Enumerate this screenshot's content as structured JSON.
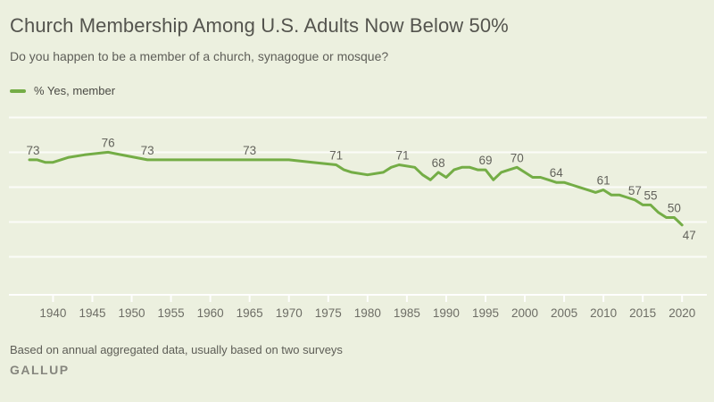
{
  "header": {
    "title": "Church Membership Among U.S. Adults Now Below 50%",
    "subtitle": "Do you happen to be a member of a church, synagogue or mosque?"
  },
  "legend": {
    "label": "% Yes, member",
    "swatch_color": "#74ad46"
  },
  "footer": {
    "note": "Based on annual aggregated data, usually based on two surveys",
    "brand": "GALLUP"
  },
  "colors": {
    "background": "#ecf0df",
    "line": "#74ad46",
    "grid": "#ffffff",
    "title_text": "#54544e",
    "label_text": "#63635c",
    "axis_text": "#6d6d65",
    "brand_text": "#86867e"
  },
  "chart_data": {
    "type": "line",
    "title": "Church Membership Among U.S. Adults Now Below 50%",
    "question": "Do you happen to be a member of a church, synagogue or mosque?",
    "xlabel": "",
    "ylabel": "% Yes, member",
    "x_range": [
      1937,
      2021
    ],
    "ylim": [
      19,
      90
    ],
    "grid": true,
    "y_axis_labels": "none (gridlines unlabeled)",
    "legend_position": "top-left",
    "x_ticks": [
      "1940",
      "1945",
      "1950",
      "1955",
      "1960",
      "1965",
      "1970",
      "1975",
      "1980",
      "1985",
      "1990",
      "1995",
      "2000",
      "2005",
      "2010",
      "2015",
      "2020"
    ],
    "x_tick_years": [
      1940,
      1945,
      1950,
      1955,
      1960,
      1965,
      1970,
      1975,
      1980,
      1985,
      1990,
      1995,
      2000,
      2005,
      2010,
      2015,
      2020
    ],
    "series": [
      {
        "name": "% Yes, member",
        "color": "#74ad46",
        "points": [
          [
            1937,
            73
          ],
          [
            1938,
            73
          ],
          [
            1939,
            72
          ],
          [
            1940,
            72
          ],
          [
            1942,
            74
          ],
          [
            1944,
            75
          ],
          [
            1947,
            76
          ],
          [
            1952,
            73
          ],
          [
            1955,
            73
          ],
          [
            1960,
            73
          ],
          [
            1965,
            73
          ],
          [
            1970,
            73
          ],
          [
            1973,
            72
          ],
          [
            1976,
            71
          ],
          [
            1977,
            69
          ],
          [
            1978,
            68
          ],
          [
            1980,
            67
          ],
          [
            1982,
            68
          ],
          [
            1983,
            70
          ],
          [
            1984,
            71
          ],
          [
            1986,
            70
          ],
          [
            1987,
            67
          ],
          [
            1988,
            65
          ],
          [
            1989,
            68
          ],
          [
            1990,
            66
          ],
          [
            1991,
            69
          ],
          [
            1992,
            70
          ],
          [
            1993,
            70
          ],
          [
            1994,
            69
          ],
          [
            1995,
            69
          ],
          [
            1996,
            65
          ],
          [
            1997,
            68
          ],
          [
            1998,
            69
          ],
          [
            1999,
            70
          ],
          [
            2000,
            68
          ],
          [
            2001,
            66
          ],
          [
            2002,
            66
          ],
          [
            2003,
            65
          ],
          [
            2004,
            64
          ],
          [
            2005,
            64
          ],
          [
            2006,
            63
          ],
          [
            2007,
            62
          ],
          [
            2008,
            61
          ],
          [
            2009,
            60
          ],
          [
            2010,
            61
          ],
          [
            2011,
            59
          ],
          [
            2012,
            59
          ],
          [
            2013,
            58
          ],
          [
            2014,
            57
          ],
          [
            2015,
            55
          ],
          [
            2016,
            55
          ],
          [
            2017,
            52
          ],
          [
            2018,
            50
          ],
          [
            2019,
            50
          ],
          [
            2020,
            47
          ]
        ]
      }
    ],
    "point_labels": [
      {
        "year": 1937,
        "text": "73",
        "placement": "above",
        "dx": 4
      },
      {
        "year": 1947,
        "text": "76",
        "placement": "above"
      },
      {
        "year": 1952,
        "text": "73",
        "placement": "above"
      },
      {
        "year": 1965,
        "text": "73",
        "placement": "above"
      },
      {
        "year": 1976,
        "text": "71",
        "placement": "above"
      },
      {
        "year": 1984,
        "text": "71",
        "placement": "above",
        "dx": 4
      },
      {
        "year": 1989,
        "text": "68",
        "placement": "above"
      },
      {
        "year": 1995,
        "text": "69",
        "placement": "above"
      },
      {
        "year": 1999,
        "text": "70",
        "placement": "above"
      },
      {
        "year": 2004,
        "text": "64",
        "placement": "above"
      },
      {
        "year": 2010,
        "text": "61",
        "placement": "above"
      },
      {
        "year": 2014,
        "text": "57",
        "placement": "above"
      },
      {
        "year": 2016,
        "text": "55",
        "placement": "above"
      },
      {
        "year": 2019,
        "text": "50",
        "placement": "above"
      },
      {
        "year": 2020,
        "text": "47",
        "placement": "below-right",
        "dx": 8
      }
    ]
  }
}
